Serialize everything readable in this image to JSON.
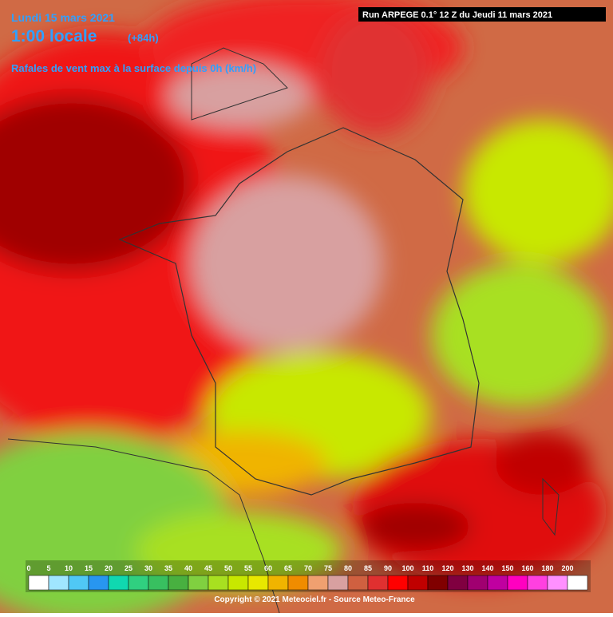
{
  "header": {
    "date": "Lundi 15 mars 2021",
    "time": "1:00 locale",
    "lead": "(+84h)",
    "subtitle": "Rafales de vent max à la surface depuis 0h (km/h)",
    "run": "Run ARPEGE 0.1° 12 Z du Jeudi 11 mars 2021"
  },
  "legend": {
    "values": [
      0,
      5,
      10,
      15,
      20,
      25,
      30,
      35,
      40,
      45,
      50,
      55,
      60,
      65,
      70,
      75,
      80,
      85,
      90,
      100,
      110,
      120,
      130,
      140,
      150,
      160,
      180,
      200
    ],
    "colors": [
      "#ffffff",
      "#a0e6ff",
      "#50c8f5",
      "#2896f0",
      "#10d8b0",
      "#30d080",
      "#38c060",
      "#48b040",
      "#80d040",
      "#a8e020",
      "#c8e800",
      "#e8e800",
      "#f0b400",
      "#f08c00",
      "#f0a070",
      "#d8a0a0",
      "#d06040",
      "#e03030",
      "#ff0000",
      "#c00000",
      "#800000",
      "#800040",
      "#a00070",
      "#c000a0",
      "#ff00c0",
      "#ff40e0",
      "#ff90ff",
      "#ffffff"
    ]
  },
  "footer": {
    "copyright": "Copyright © 2021 Meteociel.fr - Source Meteo-France"
  }
}
